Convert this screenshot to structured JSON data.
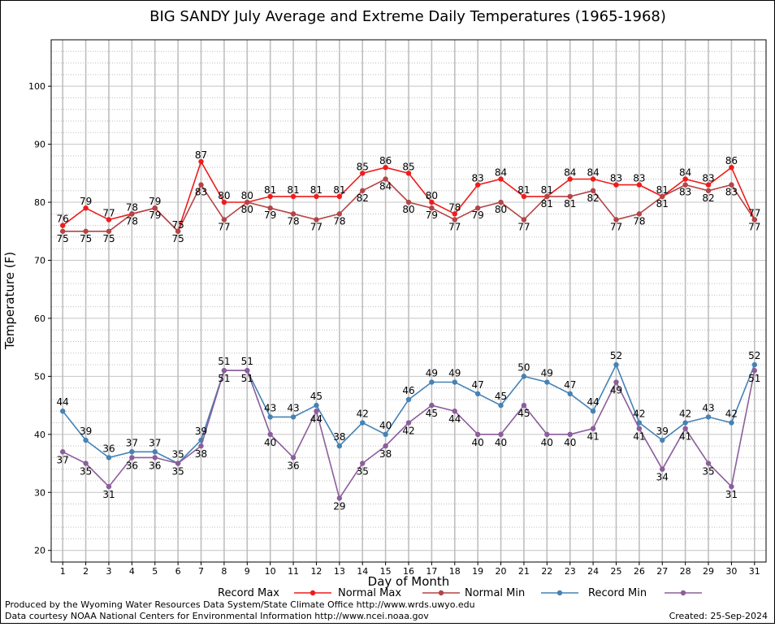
{
  "chart_data": {
    "type": "line",
    "title": "BIG SANDY July Average and Extreme Daily Temperatures (1965-1968)",
    "xlabel": "Day of Month",
    "ylabel": "Temperature (F)",
    "x": [
      1,
      2,
      3,
      4,
      5,
      6,
      7,
      8,
      9,
      10,
      11,
      12,
      13,
      14,
      15,
      16,
      17,
      18,
      19,
      20,
      21,
      22,
      23,
      24,
      25,
      26,
      27,
      28,
      29,
      30,
      31
    ],
    "xlim": [
      0.5,
      31.5
    ],
    "ylim": [
      18,
      108
    ],
    "yticks": [
      20,
      30,
      40,
      50,
      60,
      70,
      80,
      90,
      100
    ],
    "grid": true,
    "legend_position": "bottom",
    "series": [
      {
        "name": "Record Max",
        "color": "#ee1c1c",
        "values": [
          76,
          79,
          77,
          78,
          79,
          75,
          87,
          80,
          80,
          81,
          81,
          81,
          81,
          85,
          86,
          85,
          80,
          78,
          83,
          84,
          81,
          81,
          84,
          84,
          83,
          83,
          81,
          84,
          83,
          86,
          77
        ]
      },
      {
        "name": "Normal Max",
        "color": "#b44446",
        "values": [
          75,
          75,
          75,
          78,
          79,
          75,
          83,
          77,
          80,
          79,
          78,
          77,
          78,
          82,
          84,
          80,
          79,
          77,
          79,
          80,
          77,
          81,
          81,
          82,
          77,
          78,
          81,
          83,
          82,
          83,
          77
        ]
      },
      {
        "name": "Normal Min",
        "color": "#4682b4",
        "values": [
          44,
          39,
          36,
          37,
          37,
          35,
          39,
          51,
          51,
          43,
          43,
          45,
          38,
          42,
          40,
          46,
          49,
          49,
          47,
          45,
          50,
          49,
          47,
          44,
          52,
          42,
          39,
          42,
          43,
          42,
          52
        ]
      },
      {
        "name": "Record Min",
        "color": "#8b5e9b",
        "values": [
          37,
          35,
          31,
          36,
          36,
          35,
          38,
          51,
          51,
          40,
          36,
          44,
          29,
          35,
          38,
          42,
          45,
          44,
          40,
          40,
          45,
          40,
          40,
          41,
          49,
          41,
          34,
          41,
          35,
          31,
          51
        ]
      }
    ]
  },
  "footer": {
    "line1": "Produced by the Wyoming Water Resources Data System/State Climate Office http://www.wrds.uwyo.edu",
    "line2": "Data courtesy NOAA National Centers for Environmental Information http://www.ncei.noaa.gov",
    "created": "Created:  25-Sep-2024"
  }
}
